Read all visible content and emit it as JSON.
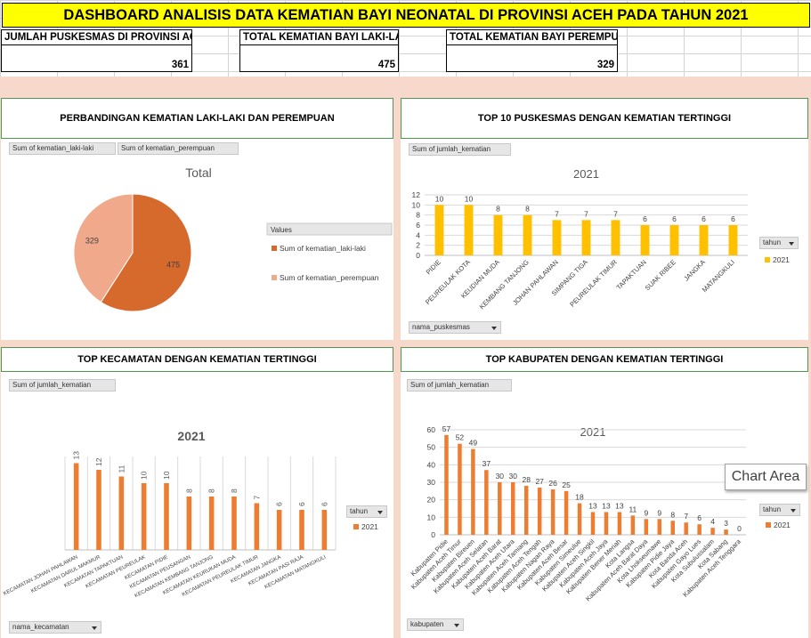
{
  "header": {
    "title": "DASHBOARD ANALISIS DATA KEMATIAN BAYI NEONATAL DI PROVINSI ACEH PADA TAHUN 2021"
  },
  "kpis": [
    {
      "label": "JUMLAH PUSKESMAS DI PROVINSI ACEH",
      "value": "361"
    },
    {
      "label": "TOTAL KEMATIAN BAYI LAKI-LAKI",
      "value": "475"
    },
    {
      "label": "TOTAL KEMATIAN BAYI PEREMPUAN",
      "value": "329"
    }
  ],
  "panels": {
    "p1": {
      "title": "PERBANDINGAN KEMATIAN LAKI-LAKI DAN PEREMPUAN",
      "chips": [
        "Sum of kematian_laki-laki",
        "Sum of kematian_perempuan"
      ]
    },
    "p2": {
      "title": "TOP 10 PUSKESMAS DENGAN KEMATIAN TERTINGGI",
      "chip": "Sum of jumlah_kematian",
      "axis_chip": "nama_puskesmas",
      "legend_chip": "tahun"
    },
    "p3": {
      "title": "TOP KECAMATAN DENGAN KEMATIAN TERTINGGI",
      "chip": "Sum of jumlah_kematian",
      "axis_chip": "nama_kecamatan",
      "legend_chip": "tahun"
    },
    "p4": {
      "title": "TOP KABUPATEN DENGAN KEMATIAN TERTINGGI",
      "chip": "Sum of jumlah_kematian",
      "axis_chip": "kabupaten",
      "legend_chip": "tahun"
    }
  },
  "tooltip": "Chart Area",
  "colors": {
    "male": "#d6692c",
    "female": "#f0a98a",
    "bar_yellow": "#ffc000",
    "bar_orange": "#ed7d31",
    "title_bar": "#ffff00",
    "band": "#f7d9cc",
    "panel_border": "#4e9a4e"
  },
  "chart_data": [
    {
      "type": "pie",
      "title": "Total",
      "legend_title": "Values",
      "legend_position": "right",
      "slices": [
        {
          "name": "Sum of kematian_laki-laki",
          "value": 475
        },
        {
          "name": "Sum of kematian_perempuan",
          "value": 329
        }
      ]
    },
    {
      "type": "bar",
      "title": "2021",
      "categories": [
        "PIDIE",
        "PEUREULAK KOTA",
        "KEUDIAN MUDA",
        "KEMBANG TANJONG",
        "JOHAN PAHLAWAN",
        "SIMPANG TIGA",
        "PEUREULAK TIMUR",
        "TAPAKTUAN",
        "SUAK RIBEE",
        "JANGKA",
        "MATANGKULI"
      ],
      "series": [
        {
          "name": "2021",
          "values": [
            10,
            10,
            8,
            8,
            7,
            7,
            7,
            6,
            6,
            6,
            6
          ]
        }
      ],
      "ylim": [
        0,
        12
      ],
      "yticks": [
        0,
        2,
        4,
        6,
        8,
        10,
        12
      ],
      "grid": true,
      "legend_position": "right"
    },
    {
      "type": "bar",
      "title": "2021",
      "categories": [
        "KECAMATAN JOHAN PAHLAWAN",
        "KECAMATAN DARUL MAKMUR",
        "KECAMATAN TAPAKTUAN",
        "KECAMATAN PEUREULAK",
        "KECAMATAN PIDIE",
        "KECAMATAN PEUSANGAN",
        "KECAMATAN KEMBANG TANJONG",
        "KECAMATAN KEURUKAN MUDA",
        "KECAMATAN PEUREULAK TIMUR",
        "KECAMATAN JANGKA",
        "KECAMATAN PASI RAJA",
        "KECAMATAN MATANGKULI"
      ],
      "series": [
        {
          "name": "2021",
          "values": [
            13,
            12,
            11,
            10,
            10,
            8,
            8,
            8,
            7,
            6,
            6,
            6
          ]
        }
      ],
      "ylim": [
        0,
        14
      ],
      "grid": true,
      "legend_position": "right"
    },
    {
      "type": "bar",
      "title": "2021",
      "categories": [
        "Kabupaten Pidie",
        "Kabupaten Aceh Timur",
        "Kabupaten Bireuen",
        "Kabupaten Aceh Selatan",
        "Kabupaten Aceh Barat",
        "Kabupaten Aceh Utara",
        "Kabupaten Aceh Tamiang",
        "Kabupaten Aceh Tengah",
        "Kabupaten Nagan Raya",
        "Kabupaten Aceh Besar",
        "Kabupaten Simeulue",
        "Kabupaten Aceh Singkil",
        "Kabupaten Aceh Jaya",
        "Kabupaten Bener Meriah",
        "Kota Langsa",
        "Kabupaten Aceh Barat Daya",
        "Kota Lhokseumawe",
        "Kabupaten Pidie Jaya",
        "Kota Banda Aceh",
        "Kabupaten Gayo Lues",
        "Kota Subulussalam",
        "Kota Sabang",
        "Kabupaten Aceh Tenggara"
      ],
      "series": [
        {
          "name": "2021",
          "values": [
            57,
            52,
            49,
            37,
            30,
            30,
            28,
            27,
            26,
            25,
            18,
            13,
            13,
            13,
            11,
            9,
            9,
            8,
            7,
            6,
            4,
            3,
            0
          ]
        }
      ],
      "ylim": [
        0,
        60
      ],
      "yticks": [
        0,
        10,
        20,
        30,
        40,
        50,
        60
      ],
      "grid": true,
      "legend_position": "right"
    }
  ]
}
